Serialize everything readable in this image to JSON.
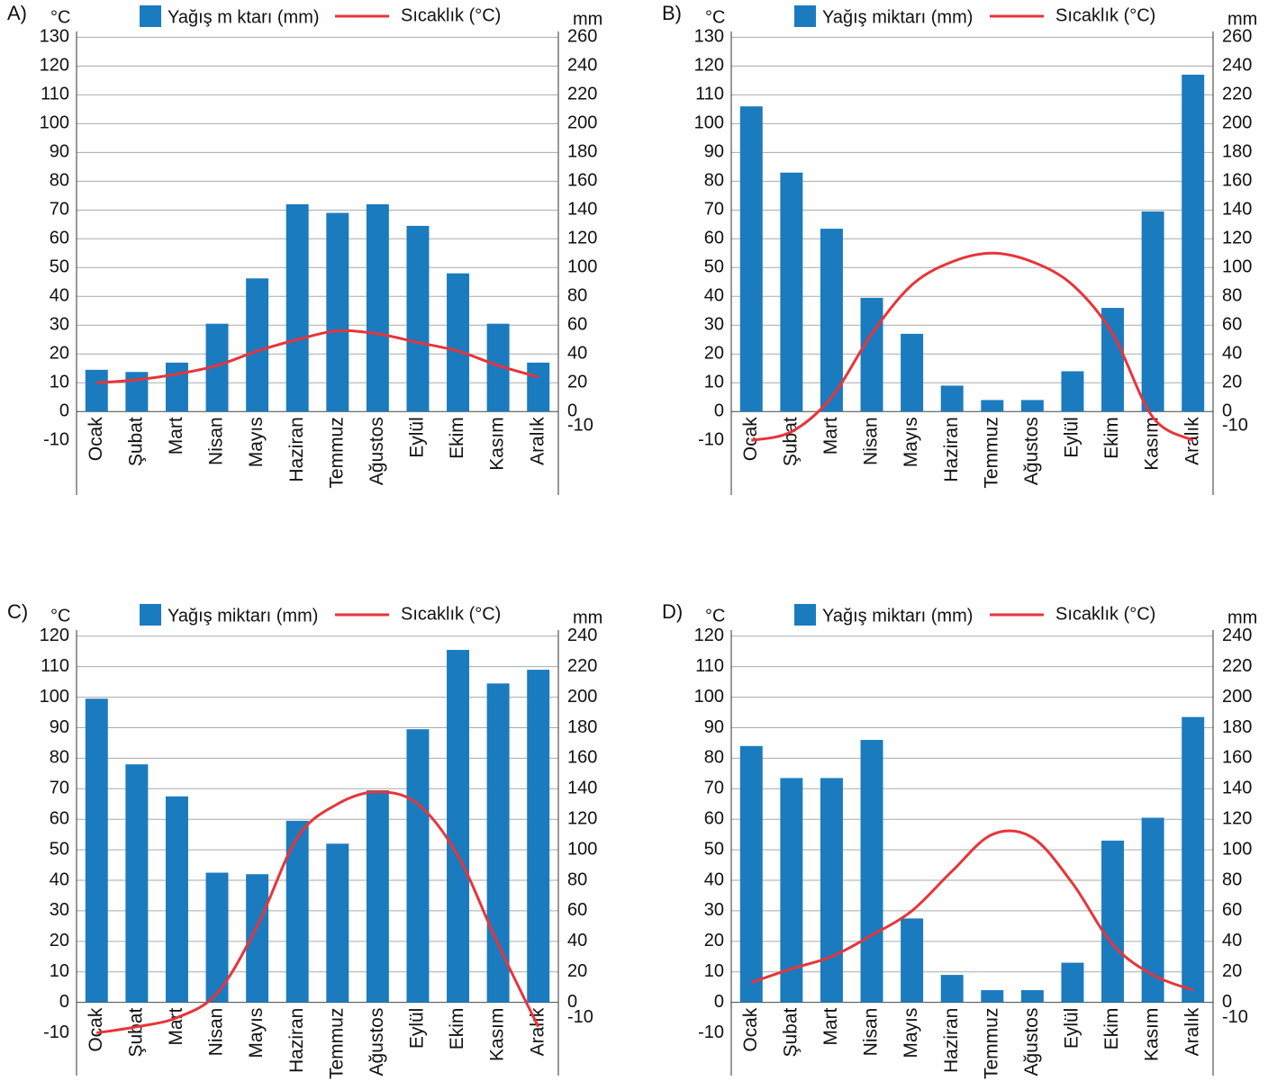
{
  "chart_data": [
    {
      "type": "combo",
      "label": "A)",
      "y_unit": "°C",
      "y2_unit": "mm",
      "grid": true,
      "categories": [
        "Ocak",
        "Şubat",
        "Mart",
        "Nisan",
        "Mayıs",
        "Haziran",
        "Temmuz",
        "Ağustos",
        "Eylül",
        "Ekim",
        "Kasım",
        "Aralık"
      ],
      "series": [
        {
          "name": "Yağış m ktarı (mm)",
          "type": "bar",
          "axis": "y2",
          "color": "#1b7bbf",
          "values": [
            29,
            27.5,
            34,
            61,
            92.5,
            144,
            138,
            144,
            129,
            96,
            61,
            34
          ]
        },
        {
          "name": "Sıcaklık (°C)",
          "type": "line",
          "color": "#e8343a",
          "values": [
            10,
            11,
            13,
            16,
            21,
            25,
            28,
            27,
            24,
            21,
            16,
            12
          ]
        }
      ],
      "ylim": [
        -29,
        132
      ],
      "yticks": [
        -10,
        0,
        10,
        20,
        30,
        40,
        50,
        60,
        70,
        80,
        90,
        100,
        110,
        120,
        130
      ],
      "y2lim": [
        -58,
        264
      ],
      "y2ticks": [
        -10,
        0,
        20,
        40,
        60,
        80,
        100,
        120,
        140,
        160,
        180,
        200,
        220,
        240,
        260
      ]
    },
    {
      "type": "combo",
      "label": "B)",
      "y_unit": "°C",
      "y2_unit": "mm",
      "grid": true,
      "categories": [
        "Ocak",
        "Şubat",
        "Mart",
        "Nisan",
        "Mayıs",
        "Haziran",
        "Temmuz",
        "Ağustos",
        "Eylül",
        "Ekim",
        "Kasım",
        "Aralık"
      ],
      "series": [
        {
          "name": "Yağış miktarı (mm)",
          "type": "bar",
          "axis": "y2",
          "color": "#1b7bbf",
          "values": [
            212,
            166,
            127,
            79,
            54,
            18,
            8,
            8,
            28,
            72,
            139,
            234
          ]
        },
        {
          "name": "Sıcaklık (°C)",
          "type": "line",
          "color": "#e8343a",
          "values": [
            -10,
            -7,
            5,
            27,
            44,
            52,
            55,
            52,
            44,
            27,
            -2,
            -10
          ]
        }
      ],
      "ylim": [
        -29,
        132
      ],
      "yticks": [
        -10,
        0,
        10,
        20,
        30,
        40,
        50,
        60,
        70,
        80,
        90,
        100,
        110,
        120,
        130
      ],
      "y2lim": [
        -58,
        264
      ],
      "y2ticks": [
        -10,
        0,
        20,
        40,
        60,
        80,
        100,
        120,
        140,
        160,
        180,
        200,
        220,
        240,
        260
      ]
    },
    {
      "type": "combo",
      "label": "C)",
      "y_unit": "°C",
      "y2_unit": "mm",
      "grid": true,
      "categories": [
        "Ocak",
        "Şubat",
        "Mart",
        "Nisan",
        "Mayıs",
        "Haziran",
        "Temmuz",
        "Ağustos",
        "Eylül",
        "Ekim",
        "Kasım",
        "Aralık"
      ],
      "series": [
        {
          "name": "Yağış miktarı (mm)",
          "type": "bar",
          "axis": "y2",
          "color": "#1b7bbf",
          "values": [
            199,
            156,
            135,
            85,
            84,
            119,
            104,
            139,
            179,
            231,
            209,
            218
          ]
        },
        {
          "name": "Sıcaklık (°C)",
          "type": "line",
          "color": "#e8343a",
          "values": [
            -10,
            -8,
            -5,
            3,
            25,
            54,
            65,
            69,
            65,
            48,
            19,
            -8
          ]
        }
      ],
      "ylim": [
        -24,
        122
      ],
      "yticks": [
        -10,
        0,
        10,
        20,
        30,
        40,
        50,
        60,
        70,
        80,
        90,
        100,
        110,
        120
      ],
      "y2lim": [
        -48,
        244
      ],
      "y2ticks": [
        -10,
        0,
        20,
        40,
        60,
        80,
        100,
        120,
        140,
        160,
        180,
        200,
        220,
        240
      ]
    },
    {
      "type": "combo",
      "label": "D)",
      "y_unit": "°C",
      "y2_unit": "mm",
      "grid": true,
      "categories": [
        "Ocak",
        "Şubat",
        "Mart",
        "Nisan",
        "Mayıs",
        "Haziran",
        "Temmuz",
        "Ağustos",
        "Eylül",
        "Ekim",
        "Kasım",
        "Aralık"
      ],
      "series": [
        {
          "name": "Yağış miktarı (mm)",
          "type": "bar",
          "axis": "y2",
          "color": "#1b7bbf",
          "values": [
            168,
            147,
            147,
            172,
            55,
            18,
            8,
            8,
            26,
            106,
            121,
            187
          ]
        },
        {
          "name": "Sıcaklık (°C)",
          "type": "line",
          "color": "#e8343a",
          "values": [
            6.5,
            11,
            15,
            22,
            30,
            43,
            55,
            54,
            39,
            19,
            9,
            4
          ]
        }
      ],
      "ylim": [
        -24,
        122
      ],
      "yticks": [
        -10,
        0,
        10,
        20,
        30,
        40,
        50,
        60,
        70,
        80,
        90,
        100,
        110,
        120
      ],
      "y2lim": [
        -48,
        244
      ],
      "y2ticks": [
        -10,
        0,
        20,
        40,
        60,
        80,
        100,
        120,
        140,
        160,
        180,
        200,
        220,
        240
      ]
    }
  ]
}
